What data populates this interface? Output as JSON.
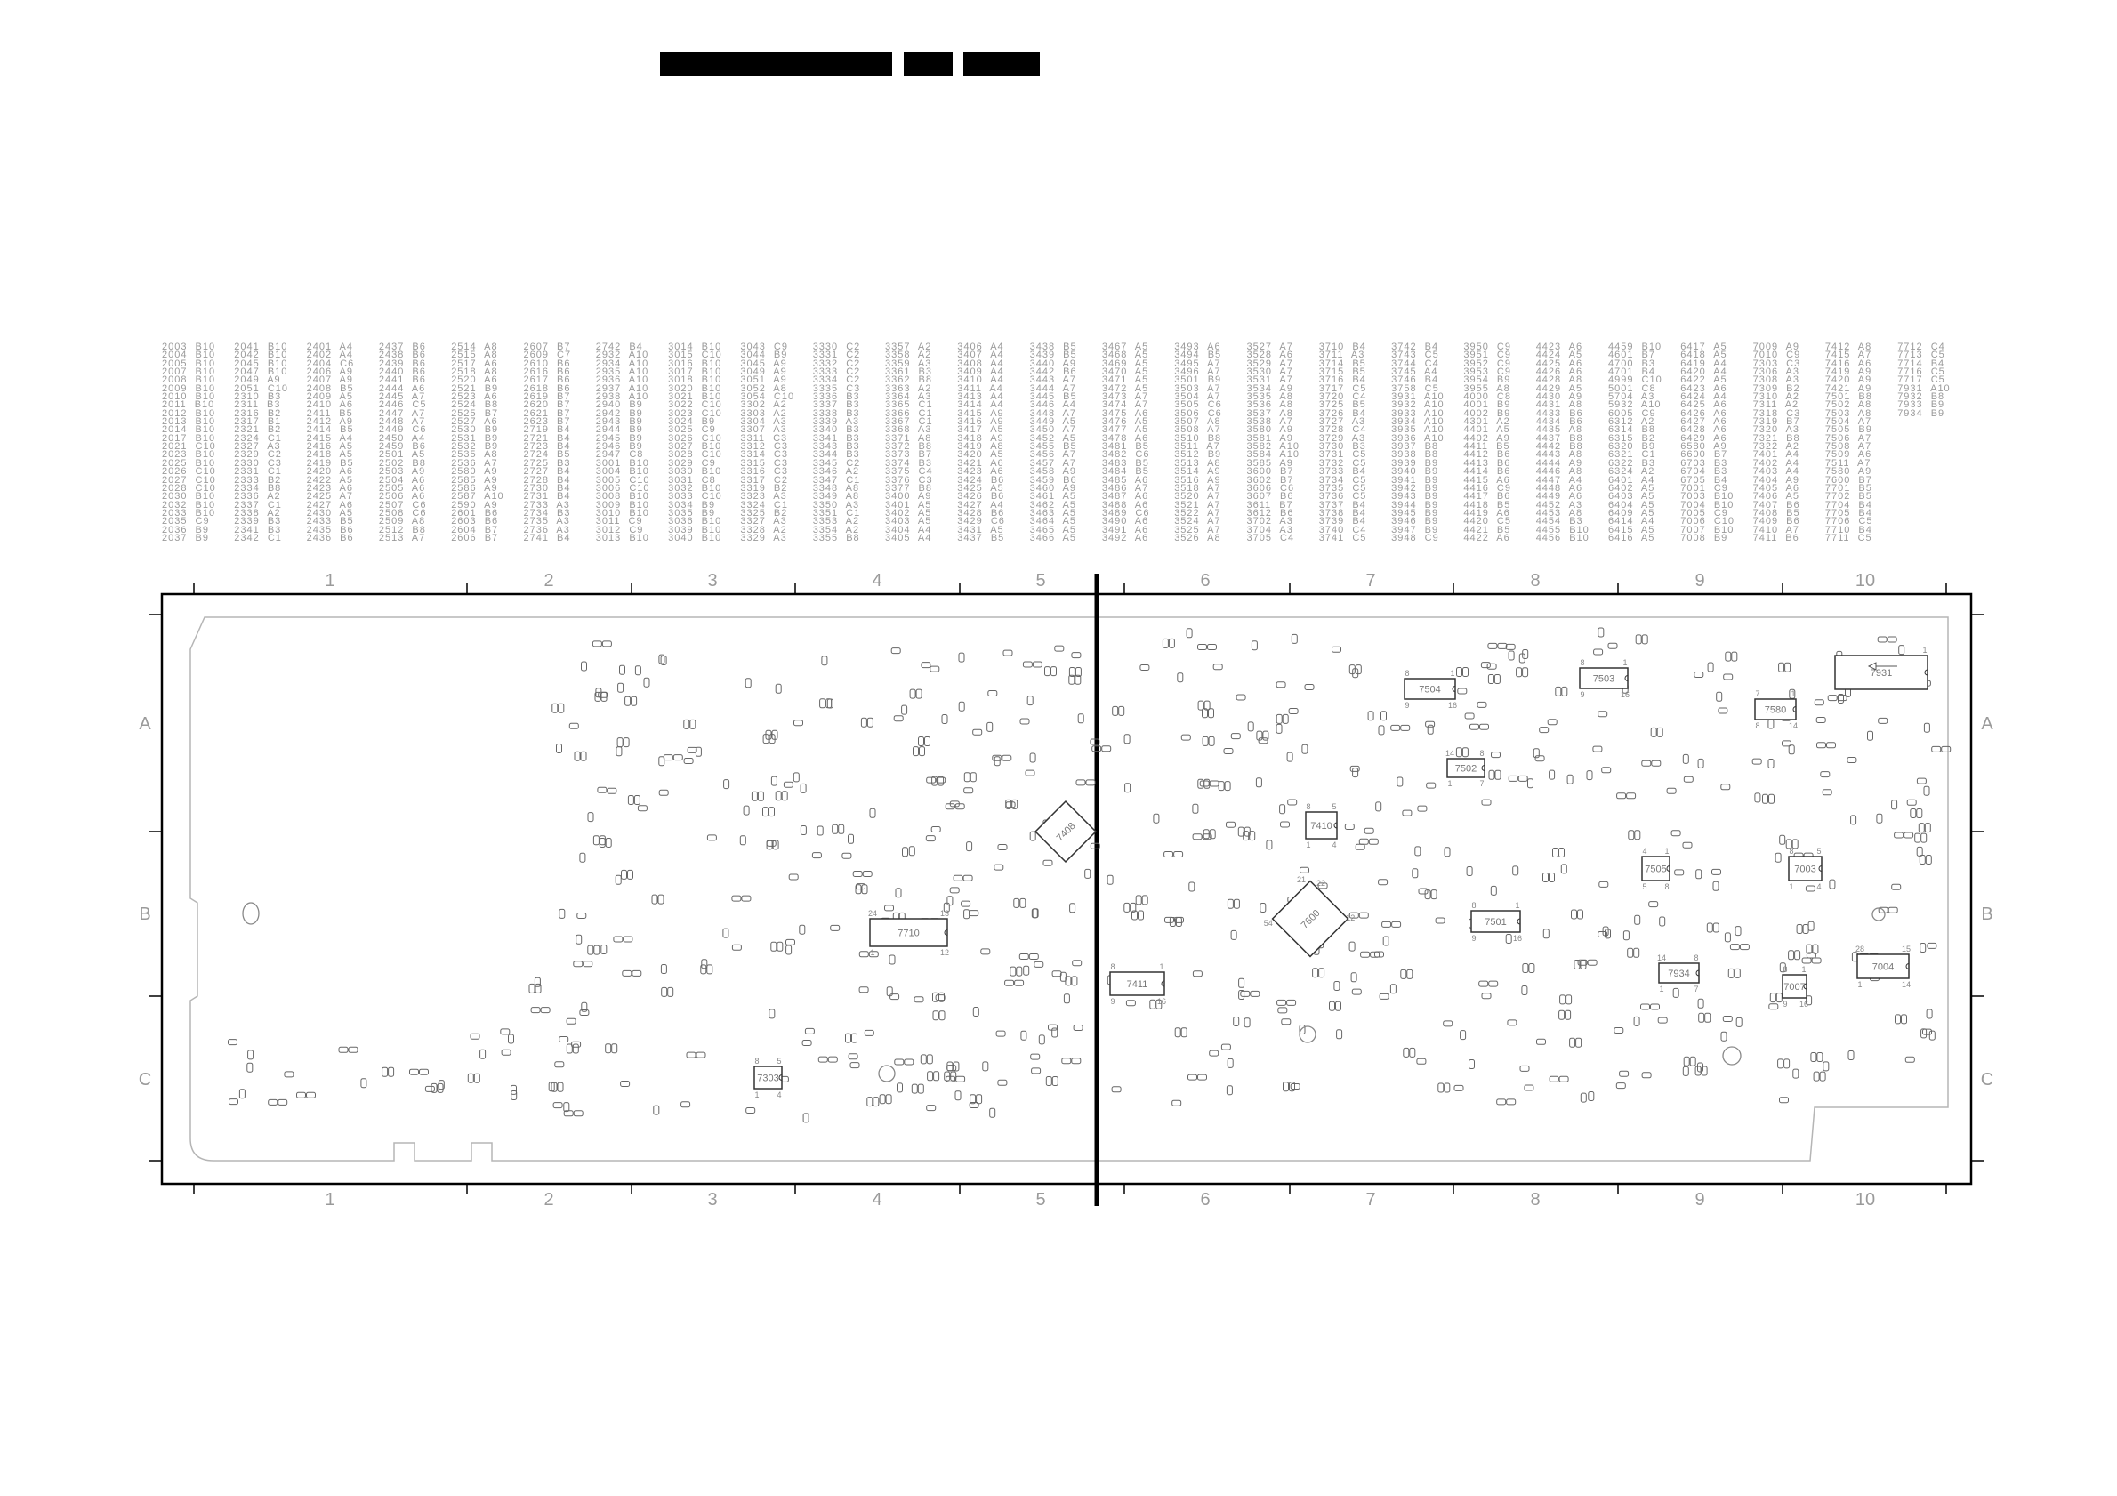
{
  "header": {
    "redacted_blocks": 3
  },
  "reference_table": [
    [
      "2003 B10",
      "2004 B10",
      "2005 B10",
      "2007 B10",
      "2008 B10",
      "2009 B10",
      "2010 B10",
      "2011 B10",
      "2012 B10",
      "2013 B10",
      "2014 B10",
      "2017 B10",
      "2021 C10",
      "2023 B10",
      "2025 B10",
      "2026 C10",
      "2027 C10",
      "2028 C10",
      "2030 B10",
      "2032 B10",
      "2033 B10",
      "2035 C9",
      "2036 B9",
      "2037 B9"
    ],
    [
      "2041 B10",
      "2042 B10",
      "2045 B10",
      "2047 B10",
      "2049 A9",
      "2051 C10",
      "2310 B3",
      "2311 B3",
      "2316 B2",
      "2317 B1",
      "2321 B2",
      "2324 C1",
      "2327 A3",
      "2329 C2",
      "2330 C3",
      "2331 C1",
      "2333 B2",
      "2334 B8",
      "2336 A2",
      "2337 C1",
      "2338 A2",
      "2339 B3",
      "2341 B3",
      "2342 C1"
    ],
    [
      "2401 A4",
      "2402 A4",
      "2404 C6",
      "2406 A9",
      "2407 A9",
      "2408 B5",
      "2409 A5",
      "2410 A6",
      "2411 B5",
      "2412 A9",
      "2414 B5",
      "2415 A4",
      "2416 A5",
      "2418 A5",
      "2419 B5",
      "2420 A6",
      "2422 A5",
      "2423 A6",
      "2425 A7",
      "2427 A6",
      "2430 A5",
      "2433 B5",
      "2435 B6",
      "2436 B6"
    ],
    [
      "2437 B6",
      "2438 B6",
      "2439 B6",
      "2440 B6",
      "2441 B6",
      "2444 A6",
      "2445 A7",
      "2446 C5",
      "2447 A7",
      "2448 A7",
      "2449 C6",
      "2450 A4",
      "2459 B6",
      "2501 A5",
      "2502 B8",
      "2503 A9",
      "2504 A6",
      "2505 A6",
      "2506 A6",
      "2507 C6",
      "2508 C6",
      "2509 A8",
      "2512 B8",
      "2513 A7"
    ],
    [
      "2514 A8",
      "2515 A8",
      "2517 A6",
      "2518 A8",
      "2520 A6",
      "2521 B9",
      "2523 A6",
      "2524 B8",
      "2525 B7",
      "2527 A6",
      "2530 B9",
      "2531 B9",
      "2532 B9",
      "2535 A8",
      "2536 A7",
      "2580 A9",
      "2585 A9",
      "2586 A9",
      "2587 A10",
      "2590 A9",
      "2601 B6",
      "2603 B6",
      "2604 B7",
      "2606 B7"
    ],
    [
      "2607 B7",
      "2609 C7",
      "2610 B6",
      "2616 B6",
      "2617 B6",
      "2618 B6",
      "2619 B7",
      "2620 B7",
      "2621 B7",
      "2623 B7",
      "2719 B4",
      "2721 B4",
      "2723 B4",
      "2724 B5",
      "2725 B3",
      "2727 B4",
      "2728 B4",
      "2730 B4",
      "2731 B4",
      "2733 A3",
      "2734 B3",
      "2735 A3",
      "2736 A3",
      "2741 B4"
    ],
    [
      "2742 B4",
      "2932 A10",
      "2934 A10",
      "2935 A10",
      "2936 A10",
      "2937 A10",
      "2938 A10",
      "2940 B9",
      "2942 B9",
      "2943 B9",
      "2944 B9",
      "2945 B9",
      "2946 B9",
      "2947 C8",
      "3001 B10",
      "3004 B10",
      "3005 C10",
      "3006 C10",
      "3008 B10",
      "3009 B10",
      "3010 B10",
      "3011 C9",
      "3012 C9",
      "3013 B10"
    ],
    [
      "3014 B10",
      "3015 C10",
      "3016 B10",
      "3017 B10",
      "3018 B10",
      "3020 B10",
      "3021 B10",
      "3022 C10",
      "3023 C10",
      "3024 B9",
      "3025 C9",
      "3026 C10",
      "3027 B10",
      "3028 C10",
      "3029 C9",
      "3030 B10",
      "3031 C8",
      "3032 B10",
      "3033 C10",
      "3034 B9",
      "3035 B9",
      "3036 B10",
      "3039 B10",
      "3040 B10"
    ],
    [
      "3043 C9",
      "3044 B9",
      "3045 A9",
      "3049 A9",
      "3051 A9",
      "3052 A8",
      "3054 C10",
      "3302 A2",
      "3303 A2",
      "3304 A3",
      "3307 A3",
      "3311 C3",
      "3312 C3",
      "3314 C3",
      "3315 C3",
      "3316 C3",
      "3317 C2",
      "3319 B2",
      "3323 A3",
      "3324 C1",
      "3325 B2",
      "3327 A3",
      "3328 A2",
      "3329 A3"
    ],
    [
      "3330 C2",
      "3331 C2",
      "3332 C2",
      "3333 C2",
      "3334 C2",
      "3335 C3",
      "3336 B3",
      "3337 B3",
      "3338 B3",
      "3339 A3",
      "3340 B3",
      "3341 B3",
      "3343 B3",
      "3344 B3",
      "3345 C2",
      "3346 A2",
      "3347 C1",
      "3348 A8",
      "3349 A8",
      "3350 A3",
      "3351 C1",
      "3353 A2",
      "3354 A2",
      "3355 B8"
    ],
    [
      "3357 A2",
      "3358 A2",
      "3359 A3",
      "3361 B3",
      "3362 B8",
      "3363 A2",
      "3364 A3",
      "3365 C1",
      "3366 C1",
      "3367 C1",
      "3368 A3",
      "3371 A8",
      "3372 B8",
      "3373 B7",
      "3374 B3",
      "3375 C4",
      "3376 C3",
      "3377 B8",
      "3400 A9",
      "3401 A5",
      "3402 A5",
      "3403 A5",
      "3404 A4",
      "3405 A4"
    ],
    [
      "3406 A4",
      "3407 A4",
      "3408 A4",
      "3409 A4",
      "3410 A4",
      "3411 A4",
      "3413 A4",
      "3414 A4",
      "3415 A9",
      "3416 A9",
      "3417 A5",
      "3418 A9",
      "3419 A8",
      "3420 A5",
      "3421 A6",
      "3423 A6",
      "3424 B6",
      "3425 A5",
      "3426 B6",
      "3427 A4",
      "3428 B6",
      "3429 C6",
      "3431 A5",
      "3437 B5"
    ],
    [
      "3438 B5",
      "3439 B5",
      "3440 A9",
      "3442 B6",
      "3443 A7",
      "3444 A7",
      "3445 B5",
      "3446 A4",
      "3448 A7",
      "3449 A5",
      "3450 A7",
      "3452 A5",
      "3455 B5",
      "3456 A7",
      "3457 A7",
      "3458 A9",
      "3459 B6",
      "3460 A9",
      "3461 A5",
      "3462 A5",
      "3463 A5",
      "3464 A5",
      "3465 A5",
      "3466 A5"
    ],
    [
      "3467 A5",
      "3468 A5",
      "3469 A5",
      "3470 A5",
      "3471 A5",
      "3472 A5",
      "3473 A7",
      "3474 A7",
      "3475 A6",
      "3476 A5",
      "3477 A5",
      "3478 A6",
      "3481 B5",
      "3482 C6",
      "3483 B5",
      "3484 B5",
      "3485 A6",
      "3486 A7",
      "3487 A6",
      "3488 A6",
      "3489 C6",
      "3490 A6",
      "3491 A6",
      "3492 A6"
    ],
    [
      "3493 A6",
      "3494 B5",
      "3495 A7",
      "3496 A7",
      "3501 B9",
      "3503 A7",
      "3504 A7",
      "3505 C6",
      "3506 C6",
      "3507 A8",
      "3508 A7",
      "3510 B8",
      "3511 A7",
      "3512 B9",
      "3513 A8",
      "3514 A9",
      "3516 A9",
      "3518 A7",
      "3520 A7",
      "3521 A7",
      "3522 A7",
      "3524 A7",
      "3525 A7",
      "3526 A8"
    ],
    [
      "3527 A7",
      "3528 A6",
      "3529 A7",
      "3530 A7",
      "3531 A7",
      "3534 A9",
      "3535 A8",
      "3536 A8",
      "3537 A8",
      "3538 A7",
      "3580 A9",
      "3581 A9",
      "3582 A10",
      "3584 A10",
      "3585 A9",
      "3600 B7",
      "3602 B7",
      "3606 C6",
      "3607 B6",
      "3611 B7",
      "3612 B6",
      "3702 A3",
      "3704 A3",
      "3705 C4"
    ],
    [
      "3710 B4",
      "3711 A3",
      "3714 B5",
      "3715 B5",
      "3716 B4",
      "3717 C5",
      "3720 C4",
      "3725 B5",
      "3726 B4",
      "3727 A3",
      "3728 C4",
      "3729 A3",
      "3730 B3",
      "3731 C5",
      "3732 C5",
      "3733 B4",
      "3734 C5",
      "3735 C5",
      "3736 C5",
      "3737 B4",
      "3738 B4",
      "3739 B4",
      "3740 C4",
      "3741 C5"
    ],
    [
      "3742 B4",
      "3743 C5",
      "3744 C4",
      "3745 A4",
      "3746 B4",
      "3758 C5",
      "3931 A10",
      "3932 A10",
      "3933 A10",
      "3934 A10",
      "3935 A10",
      "3936 A10",
      "3937 B8",
      "3938 B8",
      "3939 B9",
      "3940 B9",
      "3941 B9",
      "3942 B9",
      "3943 B9",
      "3944 B9",
      "3945 B9",
      "3946 B9",
      "3947 B9",
      "3948 C9"
    ],
    [
      "3950 C9",
      "3951 C9",
      "3952 C9",
      "3953 C9",
      "3954 B9",
      "3955 A8",
      "4000 C8",
      "4001 B9",
      "4002 B9",
      "4301 A2",
      "4401 A5",
      "4402 A9",
      "4411 B5",
      "4412 B6",
      "4413 B6",
      "4414 B6",
      "4415 A6",
      "4416 C9",
      "4417 B6",
      "4418 B5",
      "4419 A6",
      "4420 C5",
      "4421 B5",
      "4422 A6"
    ],
    [
      "4423 A6",
      "4424 A5",
      "4425 A6",
      "4426 A6",
      "4428 A8",
      "4429 A5",
      "4430 A9",
      "4431 A8",
      "4433 B6",
      "4434 B6",
      "4435 A8",
      "4437 B8",
      "4442 B8",
      "4443 A8",
      "4444 A9",
      "4446 A8",
      "4447 A4",
      "4448 A6",
      "4449 A6",
      "4452 A3",
      "4453 A8",
      "4454 B3",
      "4455 B10",
      "4456 B10"
    ],
    [
      "4459 B10",
      "4601 B7",
      "4700 B3",
      "4701 B4",
      "4999 C10",
      "5001 C8",
      "5704 A3",
      "5932 A10",
      "6005 C9",
      "6312 A2",
      "6314 B8",
      "6315 B2",
      "6320 B9",
      "6321 C1",
      "6322 B3",
      "6324 A2",
      "6401 A4",
      "6402 A5",
      "6403 A5",
      "6404 A5",
      "6409 A5",
      "6414 A4",
      "6415 A5",
      "6416 A5"
    ],
    [
      "6417 A5",
      "6418 A5",
      "6419 A4",
      "6420 A4",
      "6422 A5",
      "6423 A6",
      "6424 A4",
      "6425 A6",
      "6426 A6",
      "6427 A6",
      "6428 A6",
      "6429 A6",
      "6580 A9",
      "6600 B7",
      "6703 B3",
      "6704 B3",
      "6705 B4",
      "7001 C9",
      "7003 B10",
      "7004 B10",
      "7005 C9",
      "7006 C10",
      "7007 B10",
      "7008 B9"
    ],
    [
      "7009 A9",
      "7010 C9",
      "7303 C3",
      "7306 A3",
      "7308 A3",
      "7309 B2",
      "7310 A2",
      "7311 A2",
      "7318 C3",
      "7319 B7",
      "7320 A3",
      "7321 B8",
      "7322 A2",
      "7401 A4",
      "7402 A4",
      "7403 A4",
      "7404 A9",
      "7405 A6",
      "7406 A5",
      "7407 B6",
      "7408 B5",
      "7409 B6",
      "7410 A7",
      "7411 B6"
    ],
    [
      "7412 A8",
      "7415 A7",
      "7416 A6",
      "7419 A9",
      "7420 A9",
      "7421 A9",
      "7501 B8",
      "7502 A8",
      "7503 A8",
      "7504 A7",
      "7505 B9",
      "7506 A7",
      "7508 A7",
      "7509 A6",
      "7511 A7",
      "7580 A9",
      "7600 B7",
      "7701 B5",
      "7702 B5",
      "7704 B4",
      "7705 B4",
      "7706 C5",
      "7710 B4",
      "7711 C5"
    ],
    [
      "7712 C4",
      "7713 C5",
      "7714 B4",
      "7716 C5",
      "7717 C5",
      "7931 A10",
      "7932 B8",
      "7933 B9",
      "7934 B9"
    ]
  ],
  "grid": {
    "columns": [
      "1",
      "2",
      "3",
      "4",
      "5",
      "6",
      "7",
      "8",
      "9",
      "10"
    ],
    "rows": [
      "A",
      "B",
      "C"
    ]
  },
  "ics": [
    {
      "ref": "7710",
      "pins": [
        "24",
        "13",
        "1",
        "12"
      ]
    },
    {
      "ref": "7303",
      "pins": [
        "8",
        "5",
        "1",
        "4"
      ]
    },
    {
      "ref": "7408",
      "pins": [
        "",
        "",
        "",
        ""
      ]
    },
    {
      "ref": "7600",
      "pins": [
        "21",
        "22",
        "54",
        "12"
      ]
    },
    {
      "ref": "7411",
      "pins": [
        "8",
        "1",
        "9",
        "16"
      ]
    },
    {
      "ref": "7410",
      "pins": [
        "8",
        "5",
        "1",
        "4"
      ]
    },
    {
      "ref": "7504",
      "pins": [
        "8",
        "1",
        "9",
        "16"
      ]
    },
    {
      "ref": "7502",
      "pins": [
        "14",
        "8",
        "1",
        "7"
      ]
    },
    {
      "ref": "7501",
      "pins": [
        "8",
        "1",
        "9",
        "16"
      ]
    },
    {
      "ref": "7503",
      "pins": [
        "8",
        "1",
        "9",
        "16"
      ]
    },
    {
      "ref": "7580",
      "pins": [
        "7",
        "1",
        "8",
        "14"
      ]
    },
    {
      "ref": "7931",
      "pins": [
        "",
        "1",
        "",
        ""
      ]
    },
    {
      "ref": "7505",
      "pins": [
        "4",
        "1",
        "5",
        "8"
      ]
    },
    {
      "ref": "7003",
      "pins": [
        "8",
        "5",
        "1",
        "4"
      ]
    },
    {
      "ref": "7934",
      "pins": [
        "14",
        "8",
        "1",
        "7"
      ]
    },
    {
      "ref": "7007",
      "pins": [
        "8",
        "1",
        "9",
        "16"
      ]
    },
    {
      "ref": "7004",
      "pins": [
        "28",
        "15",
        "1",
        "14"
      ]
    }
  ],
  "colors": {
    "ink": "#000000",
    "table_text": "#9a9a9a",
    "trace": "#b0b0b0",
    "component": "#666666"
  }
}
